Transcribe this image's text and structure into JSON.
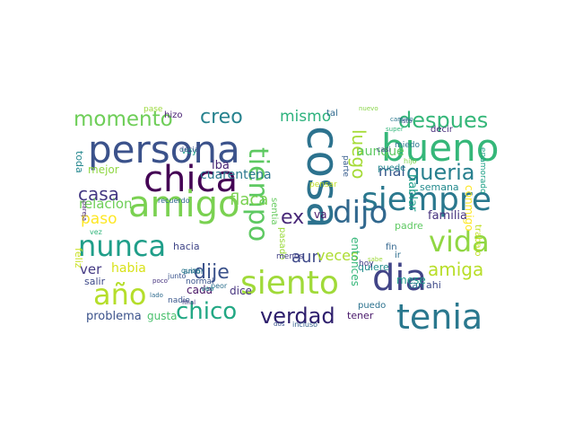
{
  "words": [
    {
      "text": "persona",
      "color": "#3b528b"
    },
    {
      "text": "cosa",
      "color": "#2c728e"
    },
    {
      "text": "bueno",
      "color": "#35b779"
    },
    {
      "text": "chica",
      "color": "#440154"
    },
    {
      "text": "amigo",
      "color": "#7ad151"
    },
    {
      "text": "siempre",
      "color": "#2a788e"
    },
    {
      "text": "tiempo",
      "color": "#5ec962"
    },
    {
      "text": "dijo",
      "color": "#31688e"
    },
    {
      "text": "nunca",
      "color": "#1f9e89"
    },
    {
      "text": "vida",
      "color": "#90d743"
    },
    {
      "text": "año",
      "color": "#b5de2b"
    },
    {
      "text": "siento",
      "color": "#a0da39"
    },
    {
      "text": "dia",
      "color": "#414487"
    },
    {
      "text": "tenia",
      "color": "#2a788e"
    },
    {
      "text": "chico",
      "color": "#22a884"
    },
    {
      "text": "verdad",
      "color": "#2d1e6c"
    },
    {
      "text": "momento",
      "color": "#6ece58"
    },
    {
      "text": "creo",
      "color": "#26828e"
    },
    {
      "text": "despues",
      "color": "#35b779"
    },
    {
      "text": "queria",
      "color": "#277f8e"
    },
    {
      "text": "luego",
      "color": "#a5db36"
    },
    {
      "text": "dije",
      "color": "#3b528b"
    },
    {
      "text": "amiga",
      "color": "#b8de29"
    },
    {
      "text": "casa",
      "color": "#443983"
    },
    {
      "text": "mismo",
      "color": "#2db27d"
    },
    {
      "text": "mal",
      "color": "#38598c"
    },
    {
      "text": "aun",
      "color": "#3e4989"
    },
    {
      "text": "ex",
      "color": "#482878"
    },
    {
      "text": "veces",
      "color": "#addc30"
    },
    {
      "text": "flaca",
      "color": "#7ad151"
    },
    {
      "text": "paso",
      "color": "#fde725"
    },
    {
      "text": "relacion",
      "color": "#6ece58"
    },
    {
      "text": "ver",
      "color": "#443983"
    },
    {
      "text": "habia",
      "color": "#d8e219"
    },
    {
      "text": "problema",
      "color": "#3b528b"
    },
    {
      "text": "gusta",
      "color": "#4ac16d"
    },
    {
      "text": "cada",
      "color": "#471365"
    },
    {
      "text": "dice",
      "color": "#46337e"
    },
    {
      "text": "aunque",
      "color": "#5ec962"
    },
    {
      "text": "entonces",
      "color": "#35b779"
    },
    {
      "text": "hablar",
      "color": "#1f9e89"
    },
    {
      "text": "familia",
      "color": "#46327e"
    },
    {
      "text": "conmigo",
      "color": "#fde725"
    },
    {
      "text": "trabajo",
      "color": "#c2df23"
    },
    {
      "text": "enamorado",
      "color": "#1fa187"
    },
    {
      "text": "decir",
      "color": "#472d7b"
    },
    {
      "text": "iba",
      "color": "#482575"
    },
    {
      "text": "mejor",
      "color": "#90d743"
    },
    {
      "text": "sentia",
      "color": "#65cb5e"
    },
    {
      "text": "pasado",
      "color": "#9bd93c"
    },
    {
      "text": "tener",
      "color": "#48186a"
    },
    {
      "text": "puedo",
      "color": "#2c728e"
    },
    {
      "text": "salir",
      "color": "#3e4989"
    },
    {
      "text": "toda",
      "color": "#24878e"
    },
    {
      "text": "voy",
      "color": "#1f9e89"
    },
    {
      "text": "cuarentena",
      "color": "#2a788e"
    },
    {
      "text": "hizo",
      "color": "#482173"
    },
    {
      "text": "tal",
      "color": "#306a8e"
    },
    {
      "text": "padre",
      "color": "#5ec962"
    },
    {
      "text": "mese",
      "color": "#1e9b8a"
    },
    {
      "text": "quiere",
      "color": "#228d8d"
    },
    {
      "text": "semana",
      "color": "#238a8d"
    },
    {
      "text": "tan",
      "color": "#2c728e"
    },
    {
      "text": "ahi",
      "color": "#3e4a89"
    },
    {
      "text": "hacia",
      "color": "#404688"
    },
    {
      "text": "menos",
      "color": "#424086"
    },
    {
      "text": "nadie",
      "color": "#39568c"
    },
    {
      "text": "amor",
      "color": "#2e6f8e"
    },
    {
      "text": "feliz",
      "color": "#c8e020"
    },
    {
      "text": "miedo",
      "color": "#2a768e"
    },
    {
      "text": "puede",
      "color": "#24868e"
    },
    {
      "text": "fin",
      "color": "#32658e"
    },
    {
      "text": "ir",
      "color": "#2e6e8e"
    },
    {
      "text": "va",
      "color": "#48186a"
    },
    {
      "text": "pensar",
      "color": "#c0df25"
    },
    {
      "text": "decia",
      "color": "#3d4d8a"
    },
    {
      "text": "hoy",
      "color": "#433e85"
    },
    {
      "text": "sabe",
      "color": "#9fda3a"
    },
    {
      "text": "parte",
      "color": "#365c8d"
    },
    {
      "text": "casi",
      "color": "#3f4788"
    },
    {
      "text": "poco",
      "color": "#46337f"
    },
    {
      "text": "lado",
      "color": "#2f6b8e"
    },
    {
      "text": "final",
      "color": "#453781"
    },
    {
      "text": "incluso",
      "color": "#34618d"
    },
    {
      "text": "dos",
      "color": "#3b528b"
    },
    {
      "text": "recuerdo",
      "color": "#31688e"
    },
    {
      "text": "quiza",
      "color": "#2a788e"
    },
    {
      "text": "pase",
      "color": "#9bd93c"
    },
    {
      "text": "hijo",
      "color": "#7fd34e"
    },
    {
      "text": "junto",
      "color": "#3a548c"
    },
    {
      "text": "vez",
      "color": "#31b57b"
    },
    {
      "text": "normal",
      "color": "#3a548c"
    },
    {
      "text": "peor",
      "color": "#2d708e"
    },
    {
      "text": "veo",
      "color": "#24878e"
    },
    {
      "text": "pareja",
      "color": "#482475"
    },
    {
      "text": "nuevo",
      "color": "#89d548"
    },
    {
      "text": "super",
      "color": "#32b67a"
    },
    {
      "text": "camino",
      "color": "#2a788e"
    },
    {
      "text": "listo",
      "color": "#3b528b"
    }
  ]
}
